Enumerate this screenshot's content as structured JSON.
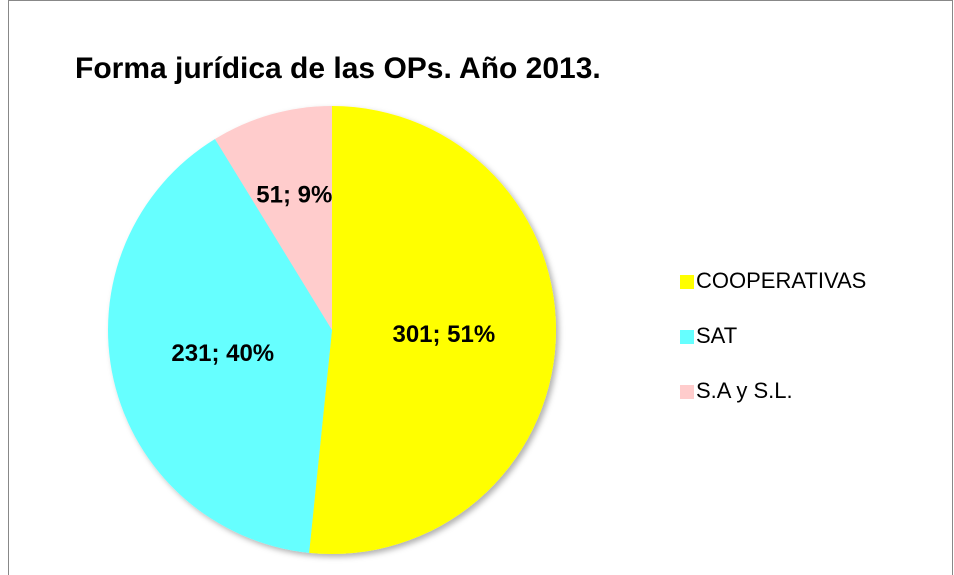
{
  "chart_data": {
    "type": "pie",
    "title": "Forma jurídica de las OPs. Año 2013.",
    "categories": [
      "COOPERATIVAS",
      "SAT",
      "S.A y S.L."
    ],
    "values": [
      301,
      231,
      51
    ],
    "value_labels": [
      "301; 51%",
      "231; 40%",
      "51; 9%"
    ],
    "colors": [
      "#ffff00",
      "#66ffff",
      "#ffcccc"
    ],
    "legend": "right"
  }
}
